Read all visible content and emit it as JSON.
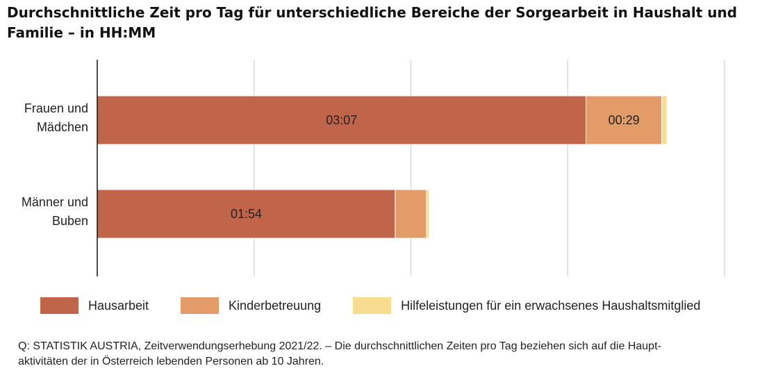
{
  "title": "Durchschnittliche Zeit pro Tag für unterschiedliche Bereiche der Sorgearbeit in Haushalt und Familie – in HH:MM",
  "source_line1": "Q: STATISTIK AUSTRIA, Zeitverwendungserhebung 2021/22. – Die durchschnittlichen Zeiten pro Tag beziehen sich auf die Haupt-",
  "source_line2": "aktivitäten der in Österreich lebenden Personen ab 10 Jahren.",
  "chart_data": {
    "type": "bar",
    "orientation": "horizontal",
    "stacked": true,
    "unit": "minutes",
    "xlim": [
      0,
      240
    ],
    "grid": true,
    "legend_position": "bottom",
    "categories": [
      [
        "Frauen und",
        "Mädchen"
      ],
      [
        "Männer und",
        "Buben"
      ]
    ],
    "series": [
      {
        "name": "Hausarbeit",
        "color": "#c1654a",
        "values": [
          187,
          114
        ],
        "labels": [
          "03:07",
          "01:54"
        ]
      },
      {
        "name": "Kinderbetreuung",
        "color": "#e39b68",
        "values": [
          29,
          12
        ],
        "labels": [
          "00:29",
          ""
        ]
      },
      {
        "name": "Hilfeleistungen für ein erwachsenes Haushaltsmitglied",
        "color": "#f5dc8e",
        "values": [
          2,
          1
        ],
        "labels": [
          "",
          ""
        ]
      }
    ]
  }
}
